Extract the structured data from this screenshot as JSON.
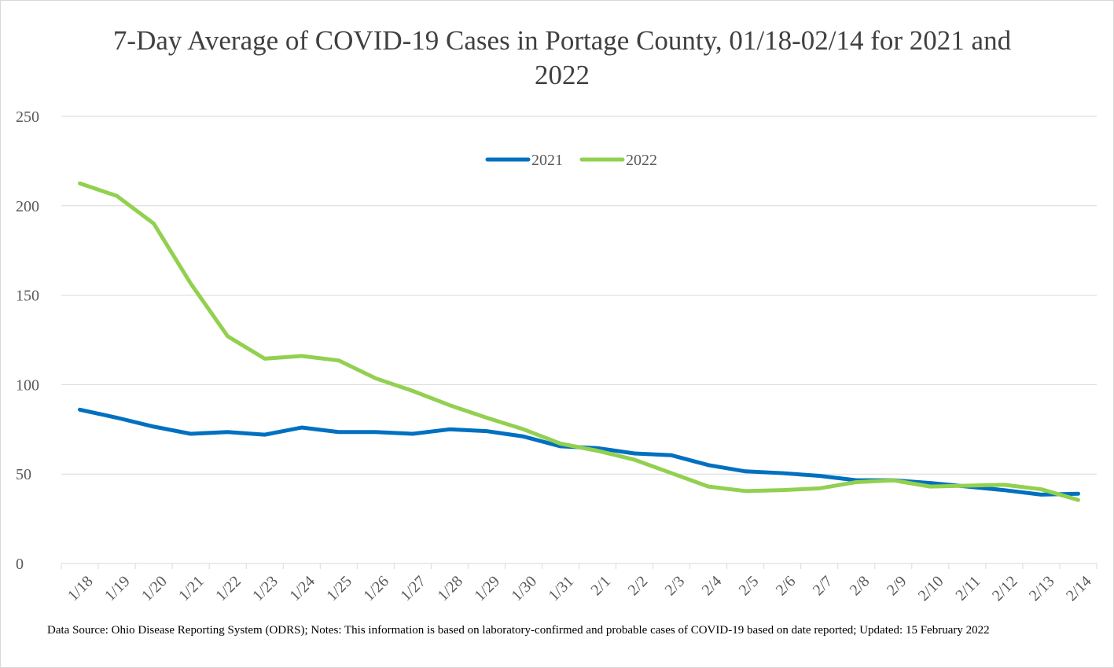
{
  "chart_data": {
    "type": "line",
    "title": "7-Day Average of COVID-19 Cases in Portage County, 01/18-02/14 for 2021 and 2022",
    "note": "Data Source: Ohio Disease Reporting System (ODRS); Notes: This information is based on laboratory-confirmed and probable cases of COVID-19 based on date reported; Updated: 15 February 2022",
    "categories": [
      "1/18",
      "1/19",
      "1/20",
      "1/21",
      "1/22",
      "1/23",
      "1/24",
      "1/25",
      "1/26",
      "1/27",
      "1/28",
      "1/29",
      "1/30",
      "1/31",
      "2/1",
      "2/2",
      "2/3",
      "2/4",
      "2/5",
      "2/6",
      "2/7",
      "2/8",
      "2/9",
      "2/10",
      "2/11",
      "2/12",
      "2/13",
      "2/14"
    ],
    "series": [
      {
        "name": "2021",
        "color": "#0070c0",
        "values": [
          86,
          81.5,
          76.5,
          72.5,
          73.5,
          72,
          76,
          73.5,
          73.5,
          72.5,
          75,
          74,
          71,
          65.5,
          64.5,
          61.5,
          60.5,
          55,
          51.5,
          50.5,
          49,
          46.5,
          46.5,
          45,
          43,
          41,
          38.5,
          39
        ]
      },
      {
        "name": "2022",
        "color": "#92d050",
        "values": [
          212.5,
          205.5,
          190,
          156.5,
          127,
          114.5,
          116,
          113.5,
          103.5,
          96.5,
          88.5,
          81.5,
          75,
          67,
          63,
          58,
          50.5,
          43,
          40.5,
          41,
          42,
          45.5,
          46.5,
          43,
          43.5,
          44,
          41.5,
          35.5
        ]
      }
    ],
    "ylim": [
      0,
      250
    ],
    "yticks": [
      0,
      50,
      100,
      150,
      200,
      250
    ],
    "grid": true,
    "legend": "top"
  }
}
